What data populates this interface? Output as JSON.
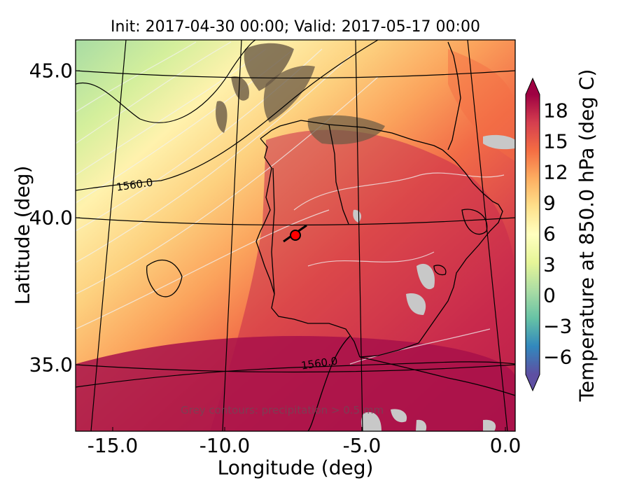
{
  "map": {
    "title": "Init: 2017-04-30 00:00; Valid: 2017-05-17 00:00",
    "x_axis": {
      "label": "Longitude (deg)",
      "ticks": [
        "-15.0",
        "-10.0",
        "-5.0",
        "0.0"
      ]
    },
    "y_axis": {
      "label": "Latitude (deg)",
      "ticks": [
        "45.0",
        "40.0",
        "35.0"
      ]
    },
    "extent": {
      "lon": [
        -16.0,
        0.2
      ],
      "lat": [
        32.5,
        46.0
      ]
    },
    "colorbar": {
      "label": "Temperature at 850.0 hPa (deg C)",
      "ticks": [
        "18",
        "15",
        "12",
        "9",
        "6",
        "3",
        "0",
        "−3",
        "−6"
      ],
      "range": [
        -8,
        20
      ],
      "colormap": [
        "#5e4fa2",
        "#3288bd",
        "#66c2a5",
        "#abdda4",
        "#e6f598",
        "#ffffbf",
        "#fee08b",
        "#fdae61",
        "#f46d43",
        "#d53e4f",
        "#9e0142"
      ]
    },
    "contour_labels": [
      "1560.0",
      "1560.0"
    ],
    "note": "Grey contours: precipitation > 0.5 mm",
    "marker": {
      "lon": -7.6,
      "lat": 39.5,
      "color": "#ff0000"
    },
    "colors": {
      "coastline": "#000000",
      "gridline": "#000000",
      "contour_light": "#f2f2f2",
      "precip": "#c8c8c8"
    }
  }
}
